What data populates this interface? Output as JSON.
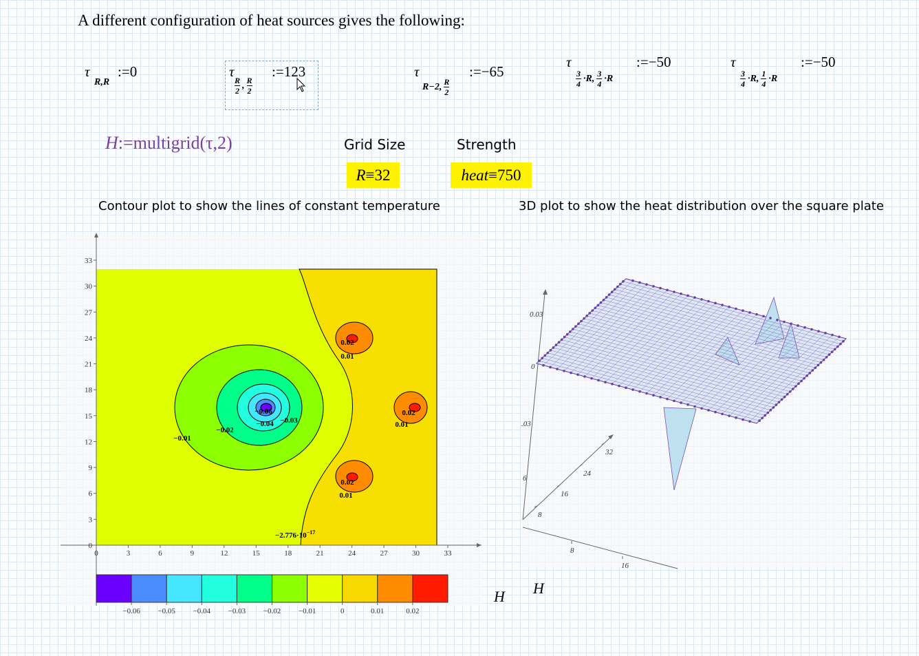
{
  "heading": "A different configuration of heat sources gives the following:",
  "assignments": [
    {
      "symbol": "τ",
      "sub": [
        {
          "text": "R,R"
        }
      ],
      "op": ":=",
      "value": "0"
    },
    {
      "symbol": "τ",
      "sub": [
        {
          "num": "R",
          "den": "2"
        },
        {
          "text": ","
        },
        {
          "num": "R",
          "den": "2"
        }
      ],
      "op": ":=",
      "value": "123"
    },
    {
      "symbol": "τ",
      "sub": [
        {
          "text": "R−2,"
        },
        {
          "num": "R",
          "den": "2"
        }
      ],
      "op": ":=",
      "value": "−65"
    },
    {
      "symbol": "τ",
      "sub": [
        {
          "num": "3",
          "den": "4"
        },
        {
          "text": "·R,"
        },
        {
          "num": "3",
          "den": "4"
        },
        {
          "text": "·R"
        }
      ],
      "op": ":=",
      "value": "−50"
    },
    {
      "symbol": "τ",
      "sub": [
        {
          "num": "3",
          "den": "4"
        },
        {
          "text": "·R,"
        },
        {
          "num": "1",
          "den": "4"
        },
        {
          "text": "·R"
        }
      ],
      "op": ":=",
      "value": "−50"
    }
  ],
  "multigrid": {
    "lhs": "H",
    "rhs": ":=multigrid(τ,2)"
  },
  "grid_size": {
    "label": "Grid Size",
    "lhs": "R",
    "rhs": "≡32"
  },
  "strength": {
    "label": "Strength",
    "lhs": "heat",
    "rhs": "≡750"
  },
  "contour_caption": "Contour plot to show the lines of constant temperature",
  "surface_caption": "3D plot to show the heat distribution over the square plate",
  "contour_plot": {
    "xlim": [
      0,
      33
    ],
    "ylim": [
      0,
      33
    ],
    "xticks": [
      0,
      3,
      6,
      9,
      12,
      15,
      18,
      21,
      24,
      27,
      30,
      33
    ],
    "yticks": [
      0,
      3,
      6,
      9,
      12,
      15,
      18,
      21,
      24,
      27,
      30,
      33
    ],
    "contour_labels": [
      "0.02",
      "0.01",
      "0.02",
      "0.01",
      "0.02",
      "0.01",
      "−0.01",
      "−0.02",
      "−0.04",
      "−0.03",
      "−0.06"
    ],
    "zero_label": {
      "mantissa": "−2.776·10",
      "exponent": "−17"
    },
    "colorbar_colors": [
      "#6a00ff",
      "#4b8cff",
      "#45e6ff",
      "#22ffde",
      "#00ff88",
      "#8cff00",
      "#e6ff00",
      "#f7d900",
      "#ff8c00",
      "#ff1a00"
    ],
    "colorbar_ticks": [
      {
        "value": -0.06,
        "label": "−0.06"
      },
      {
        "value": -0.05,
        "label": "−0.05"
      },
      {
        "value": -0.04,
        "label": "−0.04"
      },
      {
        "value": -0.03,
        "label": "−0.03"
      },
      {
        "value": -0.02,
        "label": "−0.02"
      },
      {
        "value": -0.01,
        "label": "−0.01"
      },
      0,
      0.01,
      0.02
    ],
    "label": "H"
  },
  "surface_plot": {
    "z_labels": [
      "0.03",
      "0",
      ".03",
      "6"
    ],
    "y_ticks": [
      8,
      16,
      24,
      32
    ],
    "x_ticks": [
      8,
      16
    ],
    "label": "H"
  }
}
